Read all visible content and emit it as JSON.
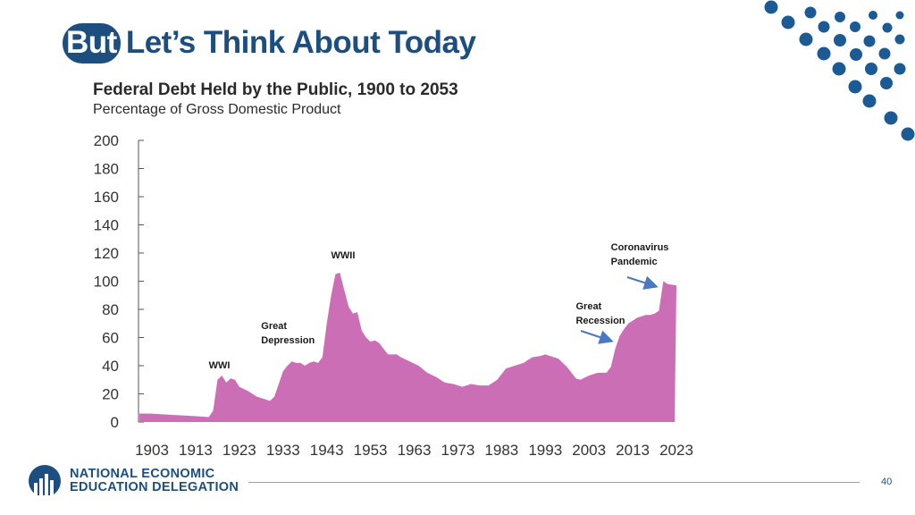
{
  "slide": {
    "title_highlight": "But",
    "title_rest": "Let’s Think About Today",
    "page_number": "40",
    "logo_line1": "NATIONAL ECONOMIC",
    "logo_line2": "EDUCATION DELEGATION"
  },
  "colors": {
    "brand": "#1c4e80",
    "area": "#cc6eb6",
    "dots": "#1c5a96",
    "arrow": "#4a78c2"
  },
  "chart_data": {
    "type": "area",
    "title": "Federal Debt Held by the Public, 1900 to 2053",
    "subtitle": "Percentage of Gross Domestic Product",
    "xlabel": "",
    "ylabel": "",
    "ylim": [
      0,
      200
    ],
    "yticks": [
      0,
      20,
      40,
      60,
      80,
      100,
      120,
      140,
      160,
      180,
      200
    ],
    "xticks": [
      1903,
      1913,
      1923,
      1933,
      1943,
      1953,
      1963,
      1973,
      1983,
      1993,
      2003,
      2013,
      2023
    ],
    "grid": false,
    "series": [
      {
        "x": [
          1903,
          1905,
          1908,
          1911,
          1914,
          1916,
          1917,
          1918,
          1919,
          1920,
          1921,
          1922,
          1923,
          1925,
          1927,
          1929,
          1930,
          1931,
          1932,
          1933,
          1934,
          1935,
          1936,
          1937,
          1938,
          1939,
          1940,
          1941,
          1942,
          1943,
          1944,
          1945,
          1946,
          1947,
          1948,
          1949,
          1950,
          1951,
          1952,
          1953,
          1954,
          1955,
          1956,
          1957,
          1958,
          1959,
          1960,
          1962,
          1964,
          1966,
          1968,
          1970,
          1972,
          1974,
          1976,
          1978,
          1980,
          1982,
          1984,
          1986,
          1988,
          1990,
          1992,
          1993,
          1994,
          1996,
          1998,
          2000,
          2001,
          2003,
          2005,
          2007,
          2008,
          2009,
          2010,
          2011,
          2012,
          2014,
          2016,
          2017,
          2018,
          2019,
          2020,
          2021,
          2023
        ],
        "values": [
          6,
          5.5,
          5,
          4.5,
          4,
          3.5,
          8,
          30,
          33,
          28,
          31,
          30,
          25,
          22,
          18,
          16,
          15,
          18,
          27,
          36,
          40,
          43,
          42,
          42,
          40,
          42,
          43,
          42,
          46,
          70,
          90,
          105,
          106,
          94,
          82,
          77,
          78,
          65,
          60,
          57,
          58,
          56,
          52,
          48,
          48,
          48,
          46,
          43,
          40,
          35,
          32,
          28,
          27,
          25,
          27,
          26,
          26,
          30,
          38,
          40,
          42,
          46,
          47,
          48,
          47,
          45,
          39,
          31,
          30,
          33,
          35,
          35,
          39,
          52,
          61,
          66,
          70,
          74,
          76,
          76,
          77,
          79,
          100,
          98,
          97
        ]
      }
    ],
    "annotations": [
      {
        "text_lines": [
          "WWI"
        ],
        "x": 1916,
        "y": 40
      },
      {
        "text_lines": [
          "Great",
          "Depression"
        ],
        "x": 1928,
        "y": 68
      },
      {
        "text_lines": [
          "WWII"
        ],
        "x": 1944,
        "y": 118
      },
      {
        "text_lines": [
          "Great",
          "Recession"
        ],
        "x": 2000,
        "y": 82
      },
      {
        "text_lines": [
          "Coronavirus",
          "Pandemic"
        ],
        "x": 2008,
        "y": 124
      }
    ]
  }
}
